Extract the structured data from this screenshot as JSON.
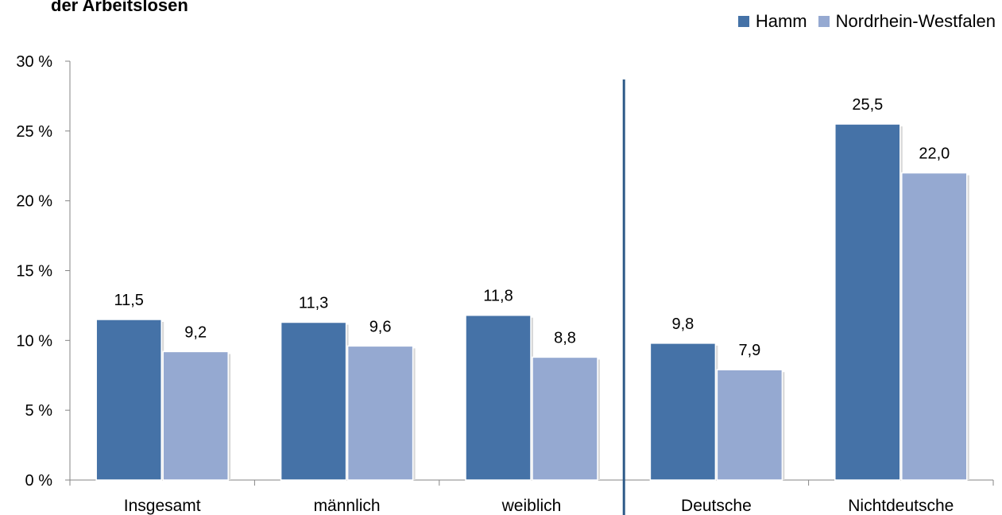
{
  "chart_data": {
    "type": "bar",
    "title": "der Arbeitslosen",
    "categories": [
      "Insgesamt",
      "männlich",
      "weiblich",
      "Deutsche",
      "Nichtdeutsche"
    ],
    "series": [
      {
        "name": "Hamm",
        "values": [
          11.5,
          11.3,
          11.8,
          9.8,
          25.5
        ],
        "labels": [
          "11,5",
          "11,3",
          "11,8",
          "9,8",
          "25,5"
        ],
        "color": "#4572A7"
      },
      {
        "name": "Nordrhein-Westfalen",
        "values": [
          9.2,
          9.6,
          8.8,
          7.9,
          22.0
        ],
        "labels": [
          "9,2",
          "9,6",
          "8,8",
          "7,9",
          "22,0"
        ],
        "color": "#95A9D1"
      }
    ],
    "ylim": [
      0,
      30
    ],
    "yticks": [
      0,
      5,
      10,
      15,
      20,
      25,
      30
    ],
    "ytick_labels": [
      "0 %",
      "5 %",
      "10 %",
      "15 %",
      "20 %",
      "25 %",
      "30 %"
    ],
    "divider_color": "#2E5A88",
    "legend_position": "top-right",
    "grid": false
  }
}
